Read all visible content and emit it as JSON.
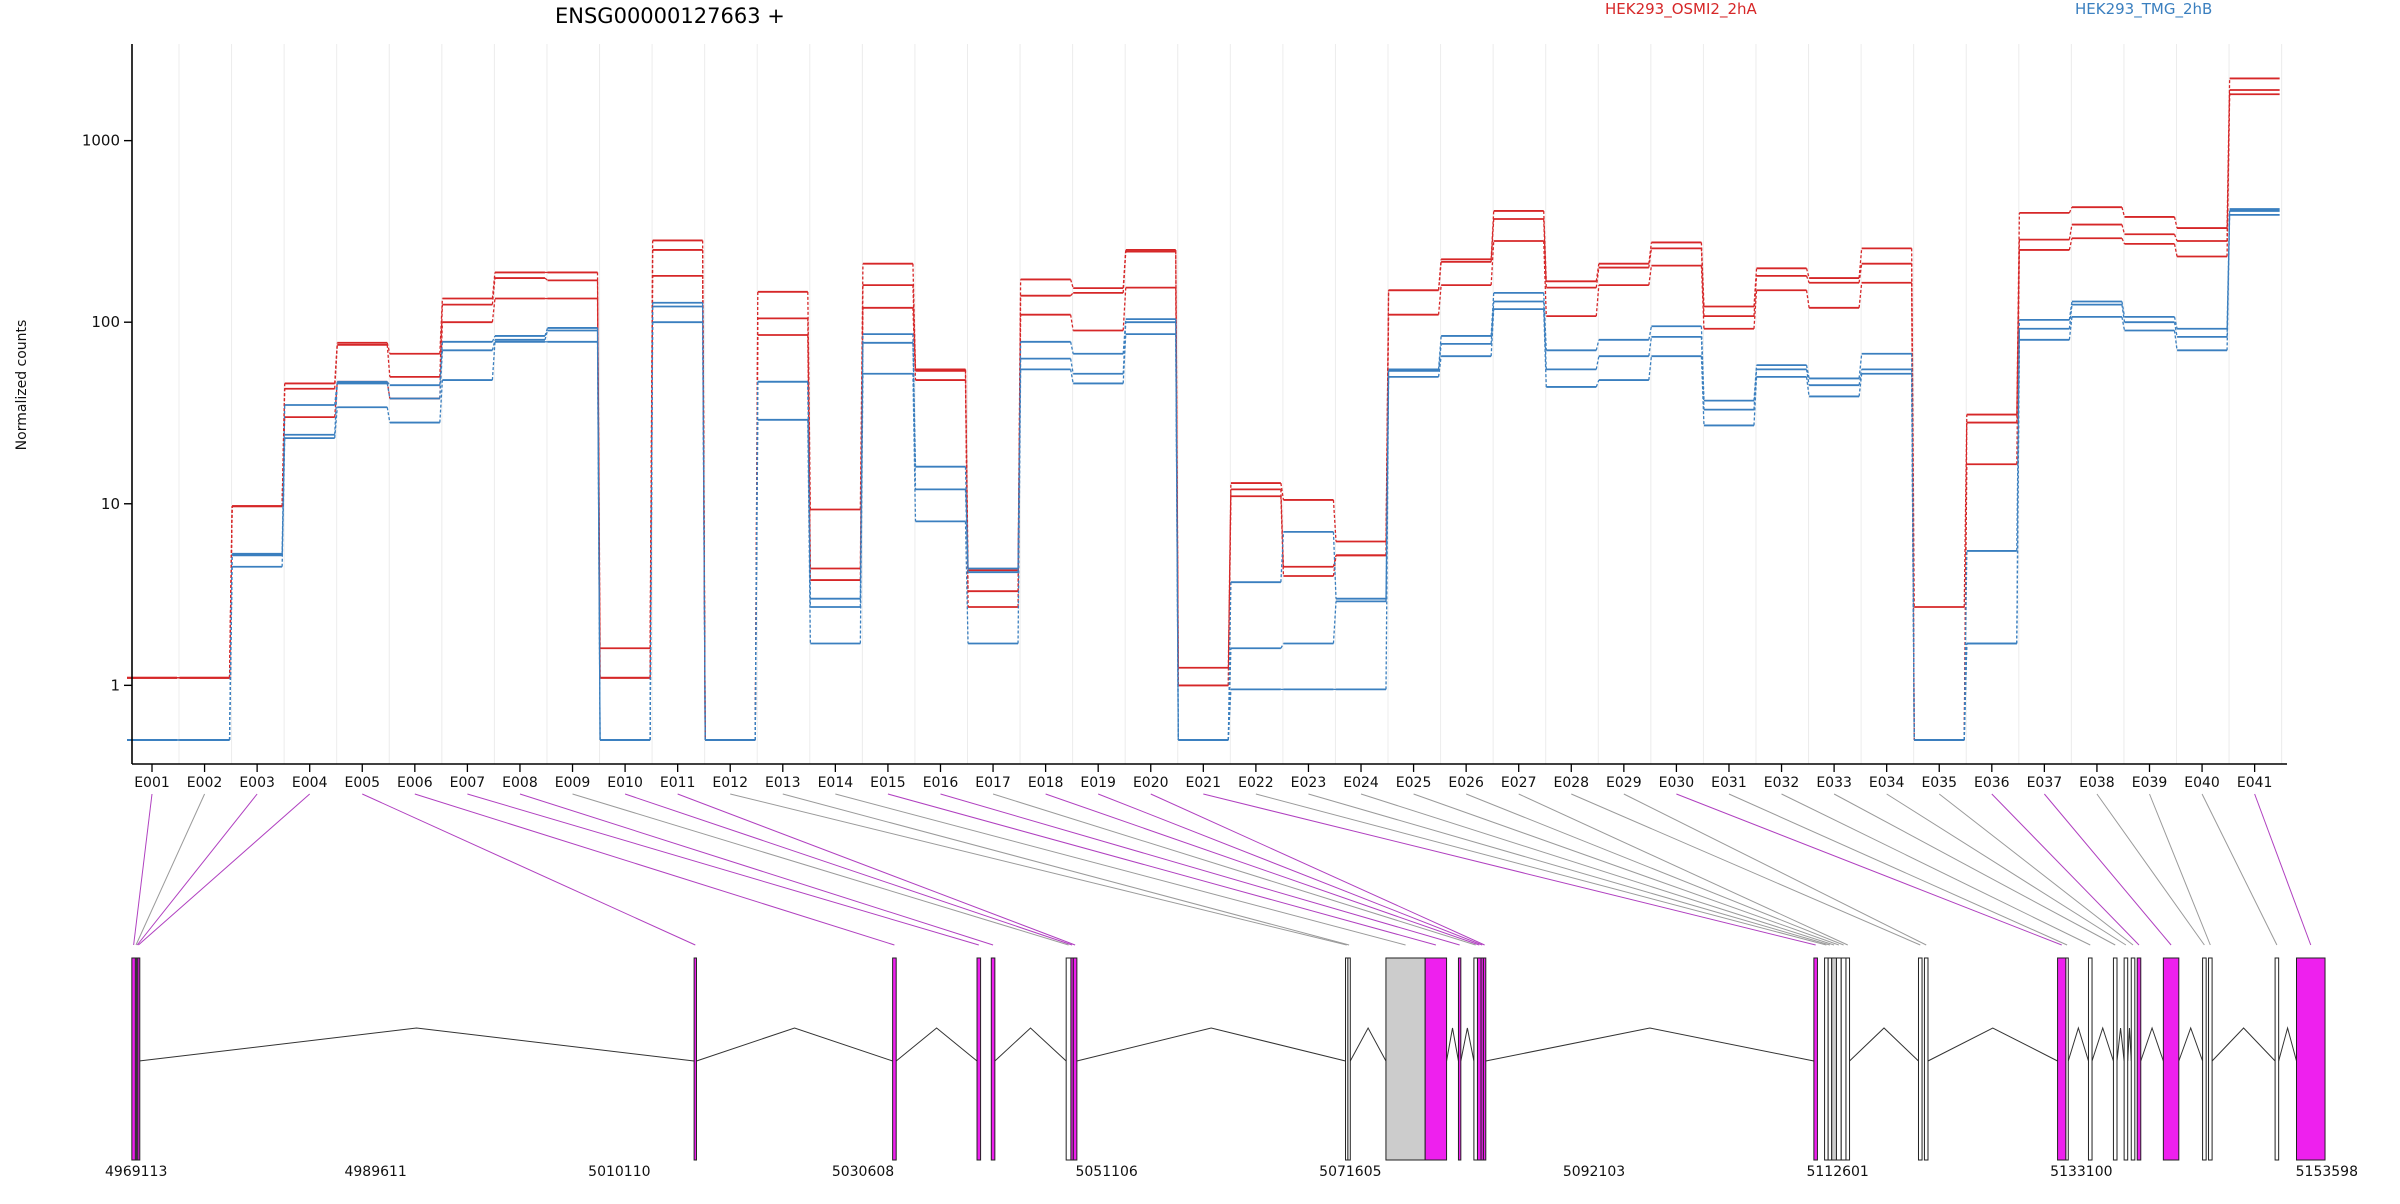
{
  "chart_data": {
    "type": "line",
    "title": "ENSG00000127663 +",
    "xlabel": "",
    "ylabel": "Normalized counts",
    "yscale": "log",
    "ylim": [
      0.5,
      3000
    ],
    "yticks": [
      {
        "value": 1,
        "label": "1"
      },
      {
        "value": 10,
        "label": "10"
      },
      {
        "value": 100,
        "label": "100"
      },
      {
        "value": 1000,
        "label": "1000"
      }
    ],
    "categories": [
      "E001",
      "E002",
      "E003",
      "E004",
      "E005",
      "E006",
      "E007",
      "E008",
      "E009",
      "E010",
      "E011",
      "E012",
      "E013",
      "E014",
      "E015",
      "E016",
      "E017",
      "E018",
      "E019",
      "E020",
      "E021",
      "E022",
      "E023",
      "E024",
      "E025",
      "E026",
      "E027",
      "E028",
      "E029",
      "E030",
      "E031",
      "E032",
      "E033",
      "E034",
      "E035",
      "E036",
      "E037",
      "E038",
      "E039",
      "E040",
      "E041"
    ],
    "grid": "vertical",
    "legend_position": "top",
    "legend": [
      {
        "label": "HEK293_OSMI2_2hA",
        "color": "#d62728"
      },
      {
        "label": "HEK293_TMG_2hB",
        "color": "#3a7fbf"
      }
    ],
    "series": [
      {
        "color": "#d62728",
        "values": [
          1.1,
          1.1,
          9.7,
          46,
          77,
          67,
          135,
          188,
          188,
          1.6,
          282,
          0.5,
          147,
          9.3,
          210,
          55,
          4.3,
          172,
          154,
          250,
          1.25,
          13,
          10.5,
          6.2,
          150,
          222,
          410,
          168,
          210,
          275,
          122,
          198,
          175,
          255,
          2.7,
          31,
          400,
          430,
          380,
          330,
          2200
        ]
      },
      {
        "color": "#d62728",
        "values": [
          1.1,
          1.1,
          9.7,
          43,
          75,
          50,
          125,
          175,
          170,
          1.1,
          250,
          0.5,
          105,
          4.4,
          160,
          54,
          3.3,
          140,
          145,
          245,
          1.0,
          12,
          4.5,
          5.2,
          150,
          215,
          370,
          155,
          200,
          255,
          108,
          180,
          165,
          210,
          0.5,
          28,
          285,
          345,
          305,
          280,
          1900
        ]
      },
      {
        "color": "#d62728",
        "values": [
          1.1,
          1.1,
          9.7,
          30,
          47,
          38,
          100,
          135,
          135,
          1.1,
          180,
          0.5,
          85,
          3.8,
          120,
          48,
          2.7,
          110,
          90,
          155,
          1.0,
          11,
          4.0,
          5.2,
          110,
          160,
          280,
          108,
          160,
          205,
          92,
          150,
          120,
          165,
          0.5,
          16.5,
          250,
          290,
          270,
          230,
          1800
        ]
      },
      {
        "color": "#3a7fbf",
        "values": [
          0.5,
          0.5,
          5.3,
          35,
          47,
          45,
          78,
          84,
          93,
          0.5,
          128,
          0.5,
          47,
          3.0,
          86,
          16,
          4.4,
          78,
          67,
          104,
          0.5,
          3.7,
          7.0,
          3.0,
          55,
          84,
          145,
          70,
          80,
          95,
          37,
          58,
          49,
          67,
          0.5,
          5.5,
          103,
          130,
          107,
          92,
          420
        ]
      },
      {
        "color": "#3a7fbf",
        "values": [
          0.5,
          0.5,
          5.2,
          24,
          46,
          38,
          70,
          80,
          90,
          0.5,
          122,
          0.5,
          47,
          2.7,
          77,
          12,
          4.2,
          63,
          52,
          100,
          0.5,
          1.6,
          1.7,
          2.9,
          54,
          76,
          130,
          55,
          65,
          83,
          33,
          55,
          45,
          55,
          0.5,
          1.7,
          92,
          125,
          100,
          83,
          410
        ]
      },
      {
        "color": "#3a7fbf",
        "values": [
          0.5,
          0.5,
          4.5,
          23,
          34,
          28,
          48,
          78,
          78,
          0.5,
          100,
          0.5,
          29,
          1.7,
          52,
          8,
          1.7,
          55,
          46,
          86,
          0.5,
          0.95,
          0.95,
          0.95,
          50,
          65,
          118,
          44,
          48,
          65,
          27,
          50,
          39,
          52,
          0.5,
          1.7,
          80,
          107,
          90,
          70,
          390
        ]
      }
    ],
    "genomic_axis": {
      "start": 4969113,
      "end": 5153598,
      "tick_labels": [
        "4969113",
        "4989611",
        "5010110",
        "5030608",
        "5051106",
        "5071605",
        "5092103",
        "5112601",
        "5133100",
        "5153598"
      ],
      "tick_values": [
        4969113,
        4989611,
        5010110,
        5030608,
        5051106,
        5071605,
        5092103,
        5112601,
        5133100,
        5153598
      ]
    },
    "exons": [
      {
        "id": "E001",
        "start": 4969100,
        "end": 4969400,
        "color": "#ee20ee"
      },
      {
        "id": "E002",
        "start": 4969400,
        "end": 4969500,
        "color": "#ffffff"
      },
      {
        "id": "E003",
        "start": 4969500,
        "end": 4969600,
        "color": "#ee20ee"
      },
      {
        "id": "E004",
        "start": 4969600,
        "end": 4969700,
        "color": "#ee20ee"
      },
      {
        "id": "E005",
        "start": 5016400,
        "end": 5016600,
        "color": "#ee20ee"
      },
      {
        "id": "E006",
        "start": 5033100,
        "end": 5033400,
        "color": "#ee20ee"
      },
      {
        "id": "E007",
        "start": 5040200,
        "end": 5040500,
        "color": "#ee20ee"
      },
      {
        "id": "E008",
        "start": 5041400,
        "end": 5041700,
        "color": "#ee20ee"
      },
      {
        "id": "E009",
        "start": 5047700,
        "end": 5048100,
        "color": "#ffffff"
      },
      {
        "id": "E010",
        "start": 5048100,
        "end": 5048300,
        "color": "#ee20ee"
      },
      {
        "id": "E011",
        "start": 5048300,
        "end": 5048600,
        "color": "#ee20ee"
      },
      {
        "id": "E012",
        "start": 5071200,
        "end": 5071400,
        "color": "#ffffff"
      },
      {
        "id": "E013",
        "start": 5071400,
        "end": 5071600,
        "color": "#ffffff"
      },
      {
        "id": "E014",
        "start": 5074600,
        "end": 5077900,
        "color": "#cccccc"
      },
      {
        "id": "E015",
        "start": 5077900,
        "end": 5079700,
        "color": "#ee20ee"
      },
      {
        "id": "E016",
        "start": 5080700,
        "end": 5080900,
        "color": "#ee20ee"
      },
      {
        "id": "E017",
        "start": 5082000,
        "end": 5082300,
        "color": "#ffffff"
      },
      {
        "id": "E018",
        "start": 5082300,
        "end": 5082600,
        "color": "#ee20ee"
      },
      {
        "id": "E019",
        "start": 5082600,
        "end": 5082800,
        "color": "#ee20ee"
      },
      {
        "id": "E020",
        "start": 5082800,
        "end": 5083000,
        "color": "#ee20ee"
      },
      {
        "id": "E021",
        "start": 5110600,
        "end": 5110900,
        "color": "#ee20ee"
      },
      {
        "id": "E022",
        "start": 5111500,
        "end": 5111800,
        "color": "#ffffff"
      },
      {
        "id": "E023",
        "start": 5111800,
        "end": 5112100,
        "color": "#ffffff"
      },
      {
        "id": "E024",
        "start": 5112100,
        "end": 5112500,
        "color": "#cccccc"
      },
      {
        "id": "E025",
        "start": 5112500,
        "end": 5112900,
        "color": "#ffffff"
      },
      {
        "id": "E026",
        "start": 5112900,
        "end": 5113300,
        "color": "#ffffff"
      },
      {
        "id": "E027",
        "start": 5113300,
        "end": 5113600,
        "color": "#ffffff"
      },
      {
        "id": "E028",
        "start": 5119400,
        "end": 5119700,
        "color": "#ffffff"
      },
      {
        "id": "E029",
        "start": 5119900,
        "end": 5120200,
        "color": "#ffffff"
      },
      {
        "id": "E030",
        "start": 5131100,
        "end": 5131800,
        "color": "#ee20ee"
      },
      {
        "id": "E031",
        "start": 5131800,
        "end": 5132000,
        "color": "#ffffff"
      },
      {
        "id": "E032",
        "start": 5133700,
        "end": 5134000,
        "color": "#ffffff"
      },
      {
        "id": "E033",
        "start": 5135800,
        "end": 5136100,
        "color": "#ffffff"
      },
      {
        "id": "E034",
        "start": 5136700,
        "end": 5137000,
        "color": "#ffffff"
      },
      {
        "id": "E035",
        "start": 5137300,
        "end": 5137600,
        "color": "#ffffff"
      },
      {
        "id": "E036",
        "start": 5137800,
        "end": 5138100,
        "color": "#ee20ee"
      },
      {
        "id": "E037",
        "start": 5140000,
        "end": 5141300,
        "color": "#ee20ee"
      },
      {
        "id": "E038",
        "start": 5143300,
        "end": 5143600,
        "color": "#ffffff"
      },
      {
        "id": "E039",
        "start": 5143800,
        "end": 5144100,
        "color": "#ffffff"
      },
      {
        "id": "E040",
        "start": 5149400,
        "end": 5149700,
        "color": "#ffffff"
      },
      {
        "id": "E041",
        "start": 5151200,
        "end": 5153600,
        "color": "#ee20ee"
      }
    ],
    "introns": [
      [
        4969700,
        5016400
      ],
      [
        5016600,
        5033100
      ],
      [
        5033400,
        5040200
      ],
      [
        5041700,
        5047700
      ],
      [
        5048600,
        5071200
      ],
      [
        5071600,
        5074600
      ],
      [
        5079700,
        5080700
      ],
      [
        5080900,
        5082000
      ],
      [
        5083000,
        5110600
      ],
      [
        5113600,
        5119400
      ],
      [
        5120200,
        5131100
      ],
      [
        5132000,
        5133700
      ],
      [
        5134000,
        5135800
      ],
      [
        5136100,
        5136700
      ],
      [
        5137000,
        5137300
      ],
      [
        5138100,
        5140000
      ],
      [
        5141300,
        5143300
      ],
      [
        5144100,
        5149400
      ],
      [
        5149700,
        5151200
      ]
    ]
  }
}
